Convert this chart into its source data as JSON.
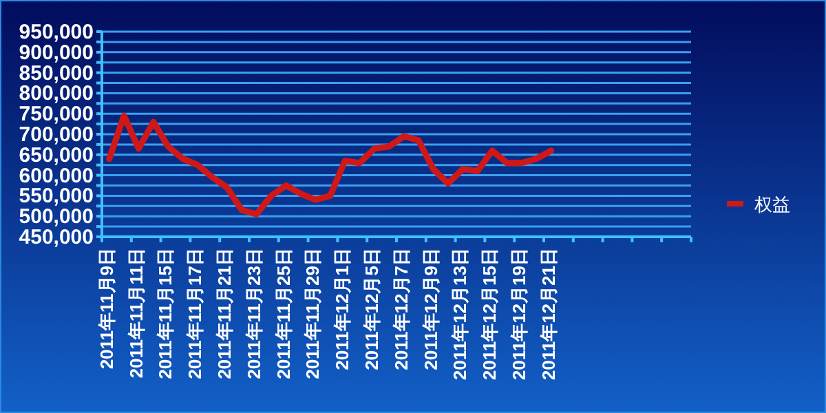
{
  "chart_data": {
    "type": "line",
    "categories": [
      "2011年11月9日",
      null,
      "2011年11月11日",
      null,
      "2011年11月15日",
      null,
      "2011年11月17日",
      null,
      "2011年11月21日",
      null,
      "2011年11月23日",
      null,
      "2011年11月25日",
      null,
      "2011年11月29日",
      null,
      "2011年12月1日",
      null,
      "2011年12月5日",
      null,
      "2011年12月7日",
      null,
      "2011年12月9日",
      null,
      "2011年12月13日",
      null,
      "2011年12月15日",
      null,
      "2011年12月19日",
      null,
      "2011年12月21日",
      null,
      null,
      null,
      null,
      null,
      null,
      null,
      null,
      null
    ],
    "series": [
      {
        "name": "权益",
        "color": "#d01818",
        "values": [
          640000,
          745000,
          665000,
          730000,
          670000,
          640000,
          625000,
          595000,
          570000,
          515000,
          505000,
          550000,
          575000,
          555000,
          540000,
          550000,
          635000,
          630000,
          665000,
          670000,
          695000,
          685000,
          615000,
          580000,
          615000,
          610000,
          660000,
          630000,
          630000,
          640000,
          660000,
          null,
          null,
          null,
          null,
          null,
          null,
          null,
          null,
          null
        ]
      }
    ],
    "ylim": [
      450000,
      950000
    ],
    "yticks": [
      {
        "value": 450000,
        "label": "450,000"
      },
      {
        "value": 475000,
        "label": null
      },
      {
        "value": 500000,
        "label": "500,000"
      },
      {
        "value": 525000,
        "label": null
      },
      {
        "value": 550000,
        "label": "550,000"
      },
      {
        "value": 575000,
        "label": null
      },
      {
        "value": 600000,
        "label": "600,000"
      },
      {
        "value": 625000,
        "label": null
      },
      {
        "value": 650000,
        "label": "650,000"
      },
      {
        "value": 675000,
        "label": null
      },
      {
        "value": 700000,
        "label": "700,000"
      },
      {
        "value": 725000,
        "label": null
      },
      {
        "value": 750000,
        "label": "750,000"
      },
      {
        "value": 775000,
        "label": null
      },
      {
        "value": 800000,
        "label": "800,000"
      },
      {
        "value": 825000,
        "label": null
      },
      {
        "value": 850000,
        "label": "850,000"
      },
      {
        "value": 875000,
        "label": null
      },
      {
        "value": 900000,
        "label": "900,000"
      },
      {
        "value": 925000,
        "label": null
      },
      {
        "value": 950000,
        "label": "950,000"
      }
    ],
    "grid": "y",
    "legend": "right",
    "marker": "none",
    "line_style": "solid"
  }
}
